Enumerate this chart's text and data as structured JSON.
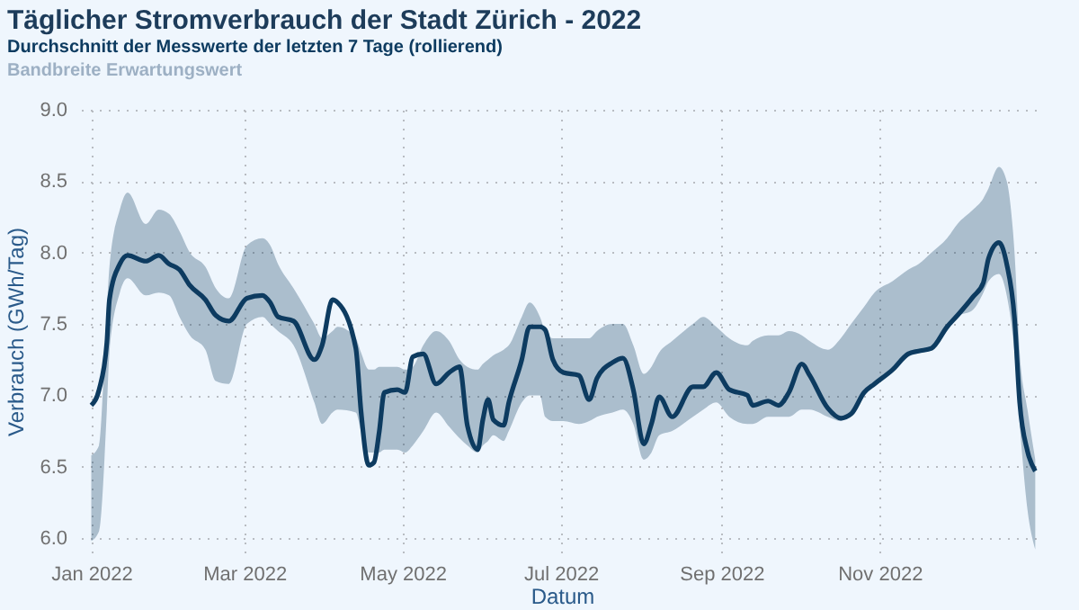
{
  "chart_data": {
    "type": "line",
    "title": "Täglicher Stromverbrauch der Stadt Zürich - 2022",
    "subtitle": "Bandbreite Erwartungswert",
    "xlabel": "Datum",
    "ylabel": "Verbrauch (GWh/Tag)",
    "x": [
      "2022-01-01",
      "2022-01-04",
      "2022-01-07",
      "2022-01-08",
      "2022-01-12",
      "2022-01-15",
      "2022-01-22",
      "2022-01-27",
      "2022-01-31",
      "2022-02-04",
      "2022-02-08",
      "2022-02-14",
      "2022-02-18",
      "2022-02-23",
      "2022-03-02",
      "2022-03-08",
      "2022-03-11",
      "2022-03-14",
      "2022-03-20",
      "2022-03-28",
      "2022-03-31",
      "2022-04-04",
      "2022-04-06",
      "2022-04-13",
      "2022-04-15",
      "2022-04-18",
      "2022-04-20",
      "2022-04-22",
      "2022-04-24",
      "2022-04-29",
      "2022-05-02",
      "2022-05-05",
      "2022-05-09",
      "2022-05-14",
      "2022-05-19",
      "2022-05-23",
      "2022-05-26",
      "2022-05-30",
      "2022-06-01",
      "2022-06-03",
      "2022-06-05",
      "2022-06-09",
      "2022-06-11",
      "2022-06-16",
      "2022-06-19",
      "2022-06-23",
      "2022-06-25",
      "2022-06-28",
      "2022-07-02",
      "2022-07-08",
      "2022-07-12",
      "2022-07-15",
      "2022-07-21",
      "2022-07-25",
      "2022-07-29",
      "2022-08-02",
      "2022-08-05",
      "2022-08-08",
      "2022-08-13",
      "2022-08-21",
      "2022-08-25",
      "2022-08-30",
      "2022-09-04",
      "2022-09-11",
      "2022-09-13",
      "2022-09-19",
      "2022-09-23",
      "2022-09-27",
      "2022-10-02",
      "2022-10-05",
      "2022-10-12",
      "2022-10-17",
      "2022-10-21",
      "2022-10-26",
      "2022-10-30",
      "2022-11-06",
      "2022-11-12",
      "2022-11-16",
      "2022-11-21",
      "2022-11-27",
      "2022-12-01",
      "2022-12-07",
      "2022-12-11",
      "2022-12-13",
      "2022-12-17",
      "2022-12-20",
      "2022-12-23",
      "2022-12-25",
      "2022-12-28",
      "2022-12-31"
    ],
    "series": [
      {
        "name": "Durchschnitt der Messwerte der letzten 7 Tage (rollierend)",
        "color": "#0d3b60",
        "values": [
          6.93,
          7.04,
          7.37,
          7.67,
          7.92,
          7.98,
          7.94,
          7.98,
          7.92,
          7.88,
          7.77,
          7.67,
          7.56,
          7.52,
          7.68,
          7.7,
          7.65,
          7.55,
          7.52,
          7.25,
          7.35,
          7.67,
          7.65,
          7.33,
          6.89,
          6.51,
          6.53,
          6.74,
          7.02,
          7.04,
          7.02,
          7.27,
          7.29,
          7.08,
          7.16,
          7.2,
          6.79,
          6.62,
          6.83,
          6.97,
          6.83,
          6.79,
          6.95,
          7.25,
          7.48,
          7.48,
          7.46,
          7.25,
          7.16,
          7.14,
          6.97,
          7.12,
          7.23,
          7.26,
          7.04,
          6.66,
          6.8,
          6.99,
          6.85,
          7.06,
          7.06,
          7.16,
          7.04,
          7.0,
          6.93,
          6.96,
          6.93,
          7.02,
          7.22,
          7.14,
          6.91,
          6.84,
          6.87,
          7.02,
          7.08,
          7.18,
          7.29,
          7.31,
          7.33,
          7.48,
          7.56,
          7.69,
          7.79,
          7.96,
          8.07,
          7.92,
          7.54,
          6.95,
          6.61,
          6.47
        ],
        "lower": [
          5.98,
          6.05,
          6.9,
          7.3,
          7.72,
          7.82,
          7.7,
          7.72,
          7.7,
          7.55,
          7.42,
          7.32,
          7.1,
          7.08,
          7.5,
          7.55,
          7.5,
          7.45,
          7.35,
          6.95,
          6.8,
          6.88,
          6.9,
          6.88,
          6.75,
          6.6,
          6.6,
          6.6,
          6.62,
          6.62,
          6.6,
          6.65,
          6.75,
          6.88,
          6.78,
          6.7,
          6.65,
          6.6,
          6.65,
          6.68,
          6.72,
          6.68,
          6.75,
          6.95,
          7.0,
          7.0,
          6.85,
          6.82,
          6.82,
          6.8,
          6.82,
          6.85,
          6.88,
          6.9,
          6.8,
          6.55,
          6.6,
          6.72,
          6.75,
          6.85,
          6.9,
          6.95,
          6.85,
          6.8,
          6.8,
          6.85,
          6.85,
          6.85,
          6.9,
          6.9,
          6.85,
          6.82,
          6.88,
          7.0,
          7.08,
          7.2,
          7.3,
          7.3,
          7.32,
          7.45,
          7.55,
          7.6,
          7.72,
          7.8,
          7.85,
          7.7,
          7.3,
          6.8,
          6.2,
          5.92
        ],
        "upper": [
          6.58,
          6.65,
          7.6,
          7.9,
          8.3,
          8.42,
          8.2,
          8.3,
          8.27,
          8.15,
          8.0,
          7.9,
          7.75,
          7.68,
          8.05,
          8.1,
          8.05,
          7.92,
          7.75,
          7.5,
          7.4,
          7.45,
          7.48,
          7.4,
          7.3,
          7.18,
          7.18,
          7.2,
          7.2,
          7.2,
          7.18,
          7.2,
          7.35,
          7.45,
          7.38,
          7.25,
          7.2,
          7.18,
          7.22,
          7.25,
          7.28,
          7.32,
          7.35,
          7.55,
          7.65,
          7.55,
          7.45,
          7.4,
          7.4,
          7.4,
          7.4,
          7.45,
          7.5,
          7.5,
          7.35,
          7.15,
          7.2,
          7.3,
          7.38,
          7.5,
          7.55,
          7.48,
          7.4,
          7.35,
          7.38,
          7.42,
          7.42,
          7.45,
          7.42,
          7.38,
          7.32,
          7.4,
          7.5,
          7.62,
          7.72,
          7.8,
          7.88,
          7.92,
          8.0,
          8.1,
          8.2,
          8.3,
          8.38,
          8.45,
          8.6,
          8.5,
          8.0,
          7.3,
          6.9,
          6.55
        ]
      }
    ],
    "xlim": [
      "2021-12-28",
      "2023-01-03"
    ],
    "xticks": [
      {
        "value": "2022-01-01",
        "label": "Jan 2022"
      },
      {
        "value": "2022-03-01",
        "label": "Mar 2022"
      },
      {
        "value": "2022-05-01",
        "label": "May 2022"
      },
      {
        "value": "2022-07-01",
        "label": "Jul 2022"
      },
      {
        "value": "2022-09-01",
        "label": "Sep 2022"
      },
      {
        "value": "2022-11-01",
        "label": "Nov 2022"
      }
    ],
    "ylim": [
      5.9,
      9.0
    ],
    "yticks": [
      {
        "value": 6,
        "label": "6.0"
      },
      {
        "value": 6.5,
        "label": "6.5"
      },
      {
        "value": 7,
        "label": "7.0"
      },
      {
        "value": 7.5,
        "label": "7.5"
      },
      {
        "value": 8,
        "label": "8.0"
      },
      {
        "value": 8.5,
        "label": "8.5"
      },
      {
        "value": 9,
        "label": "9.0"
      }
    ],
    "grid": true,
    "marker": "none",
    "line_style": "solid"
  }
}
